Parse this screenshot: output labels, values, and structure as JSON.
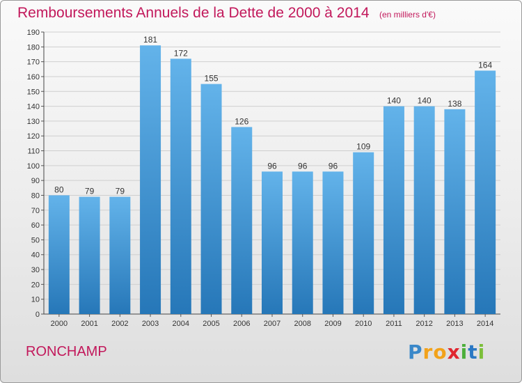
{
  "page": {
    "commune": "RONCHAMP",
    "logo_letters": [
      "P",
      "r",
      "o",
      "x",
      "i",
      "t",
      "i"
    ],
    "logo_colors": [
      "#3a88c9",
      "#f2a21a",
      "#f2a21a",
      "#e0262f",
      "#4caf3a",
      "#2a78c4",
      "#7cbf3a"
    ]
  },
  "colors": {
    "title": "#c2185b",
    "bar_top": "#63b3ea",
    "bar_bottom": "#2677b8",
    "grid": "#cfcfcf"
  },
  "chart_data": {
    "type": "bar",
    "title": "Remboursements Annuels de la Dette de 2000 à 2014",
    "subtitle": "(en milliers d'€)",
    "categories": [
      "2000",
      "2001",
      "2002",
      "2003",
      "2004",
      "2005",
      "2006",
      "2007",
      "2008",
      "2009",
      "2010",
      "2011",
      "2012",
      "2013",
      "2014"
    ],
    "values": [
      80,
      79,
      79,
      181,
      172,
      155,
      126,
      96,
      96,
      96,
      109,
      140,
      140,
      138,
      164
    ],
    "ylim": [
      0,
      190
    ],
    "ytick_step": 10,
    "xlabel": "",
    "ylabel": "",
    "grid": true
  }
}
